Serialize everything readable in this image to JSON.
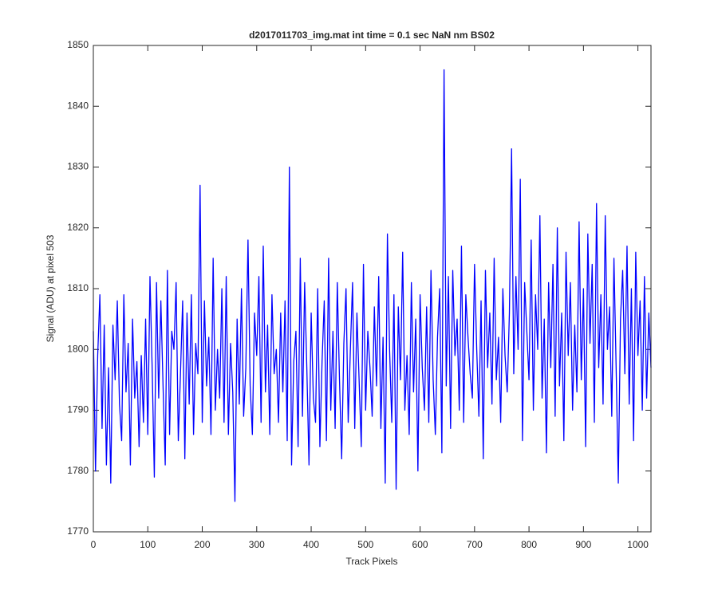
{
  "chart_data": {
    "type": "line",
    "title": "d2017011703_img.mat int time = 0.1 sec  NaN nm BS02",
    "x_label": "Track Pixels",
    "y_label": "Signal (ADU) at pixel 503",
    "color": "#0000ff",
    "xlim": [
      0,
      1024
    ],
    "ylim": [
      1770,
      1850
    ],
    "xticks": [
      0,
      100,
      200,
      300,
      400,
      500,
      600,
      700,
      800,
      900,
      1000
    ],
    "yticks": [
      1770,
      1780,
      1790,
      1800,
      1810,
      1820,
      1830,
      1840,
      1850
    ],
    "grid": false,
    "x": [
      0,
      4,
      8,
      12,
      16,
      20,
      24,
      28,
      32,
      36,
      40,
      44,
      48,
      52,
      56,
      60,
      64,
      68,
      72,
      76,
      80,
      84,
      88,
      92,
      96,
      100,
      104,
      108,
      112,
      116,
      120,
      124,
      128,
      132,
      136,
      140,
      144,
      148,
      152,
      156,
      160,
      164,
      168,
      172,
      176,
      180,
      184,
      188,
      192,
      196,
      200,
      204,
      208,
      212,
      216,
      220,
      224,
      228,
      232,
      236,
      240,
      244,
      248,
      252,
      256,
      260,
      264,
      268,
      272,
      276,
      280,
      284,
      288,
      292,
      296,
      300,
      304,
      308,
      312,
      316,
      320,
      324,
      328,
      332,
      336,
      340,
      344,
      348,
      352,
      356,
      360,
      364,
      368,
      372,
      376,
      380,
      384,
      388,
      392,
      396,
      400,
      404,
      408,
      412,
      416,
      420,
      424,
      428,
      432,
      436,
      440,
      444,
      448,
      452,
      456,
      460,
      464,
      468,
      472,
      476,
      480,
      484,
      488,
      492,
      496,
      500,
      504,
      508,
      512,
      516,
      520,
      524,
      528,
      532,
      536,
      540,
      544,
      548,
      552,
      556,
      560,
      564,
      568,
      572,
      576,
      580,
      584,
      588,
      592,
      596,
      600,
      604,
      608,
      612,
      616,
      620,
      624,
      628,
      632,
      636,
      640,
      644,
      648,
      652,
      656,
      660,
      664,
      668,
      672,
      676,
      680,
      684,
      688,
      692,
      696,
      700,
      704,
      708,
      712,
      716,
      720,
      724,
      728,
      732,
      736,
      740,
      744,
      748,
      752,
      756,
      760,
      764,
      768,
      772,
      776,
      780,
      784,
      788,
      792,
      796,
      800,
      804,
      808,
      812,
      816,
      820,
      824,
      828,
      832,
      836,
      840,
      844,
      848,
      852,
      856,
      860,
      864,
      868,
      872,
      876,
      880,
      884,
      888,
      892,
      896,
      900,
      904,
      908,
      912,
      916,
      920,
      924,
      928,
      932,
      936,
      940,
      944,
      948,
      952,
      956,
      960,
      964,
      968,
      972,
      976,
      980,
      984,
      988,
      992,
      996,
      1000,
      1004,
      1008,
      1012,
      1016,
      1020,
      1024
    ],
    "values": [
      1803,
      1780,
      1799,
      1809,
      1787,
      1804,
      1781,
      1797,
      1778,
      1804,
      1795,
      1808,
      1791,
      1785,
      1809,
      1793,
      1801,
      1781,
      1805,
      1792,
      1798,
      1784,
      1799,
      1788,
      1805,
      1786,
      1812,
      1797,
      1779,
      1811,
      1792,
      1808,
      1794,
      1781,
      1813,
      1786,
      1803,
      1800,
      1811,
      1785,
      1796,
      1808,
      1782,
      1806,
      1791,
      1809,
      1786,
      1801,
      1796,
      1827,
      1788,
      1808,
      1794,
      1802,
      1786,
      1815,
      1790,
      1800,
      1792,
      1810,
      1788,
      1812,
      1786,
      1801,
      1793,
      1775,
      1805,
      1791,
      1810,
      1789,
      1797,
      1818,
      1794,
      1786,
      1806,
      1799,
      1812,
      1788,
      1817,
      1793,
      1804,
      1786,
      1809,
      1796,
      1800,
      1788,
      1806,
      1793,
      1808,
      1785,
      1830,
      1781,
      1798,
      1803,
      1784,
      1815,
      1789,
      1811,
      1797,
      1781,
      1806,
      1792,
      1788,
      1810,
      1784,
      1798,
      1808,
      1785,
      1815,
      1790,
      1803,
      1787,
      1811,
      1795,
      1782,
      1801,
      1810,
      1788,
      1800,
      1811,
      1787,
      1806,
      1795,
      1784,
      1814,
      1790,
      1803,
      1797,
      1789,
      1807,
      1794,
      1812,
      1787,
      1802,
      1778,
      1819,
      1800,
      1788,
      1809,
      1777,
      1807,
      1795,
      1816,
      1790,
      1799,
      1786,
      1811,
      1793,
      1805,
      1780,
      1809,
      1797,
      1790,
      1807,
      1788,
      1813,
      1795,
      1786,
      1802,
      1810,
      1783,
      1846,
      1794,
      1812,
      1787,
      1813,
      1799,
      1805,
      1790,
      1817,
      1788,
      1809,
      1802,
      1796,
      1792,
      1814,
      1800,
      1789,
      1808,
      1782,
      1813,
      1797,
      1806,
      1791,
      1815,
      1795,
      1802,
      1788,
      1810,
      1799,
      1793,
      1806,
      1833,
      1796,
      1812,
      1800,
      1828,
      1785,
      1811,
      1803,
      1795,
      1818,
      1790,
      1809,
      1800,
      1822,
      1792,
      1805,
      1783,
      1811,
      1797,
      1814,
      1789,
      1820,
      1794,
      1806,
      1785,
      1816,
      1799,
      1811,
      1790,
      1804,
      1793,
      1821,
      1795,
      1810,
      1784,
      1819,
      1801,
      1814,
      1788,
      1824,
      1797,
      1809,
      1791,
      1822,
      1800,
      1807,
      1789,
      1815,
      1797,
      1778,
      1805,
      1813,
      1796,
      1817,
      1791,
      1810,
      1785,
      1816,
      1799,
      1808,
      1790,
      1812,
      1792,
      1806,
      1797
    ]
  }
}
